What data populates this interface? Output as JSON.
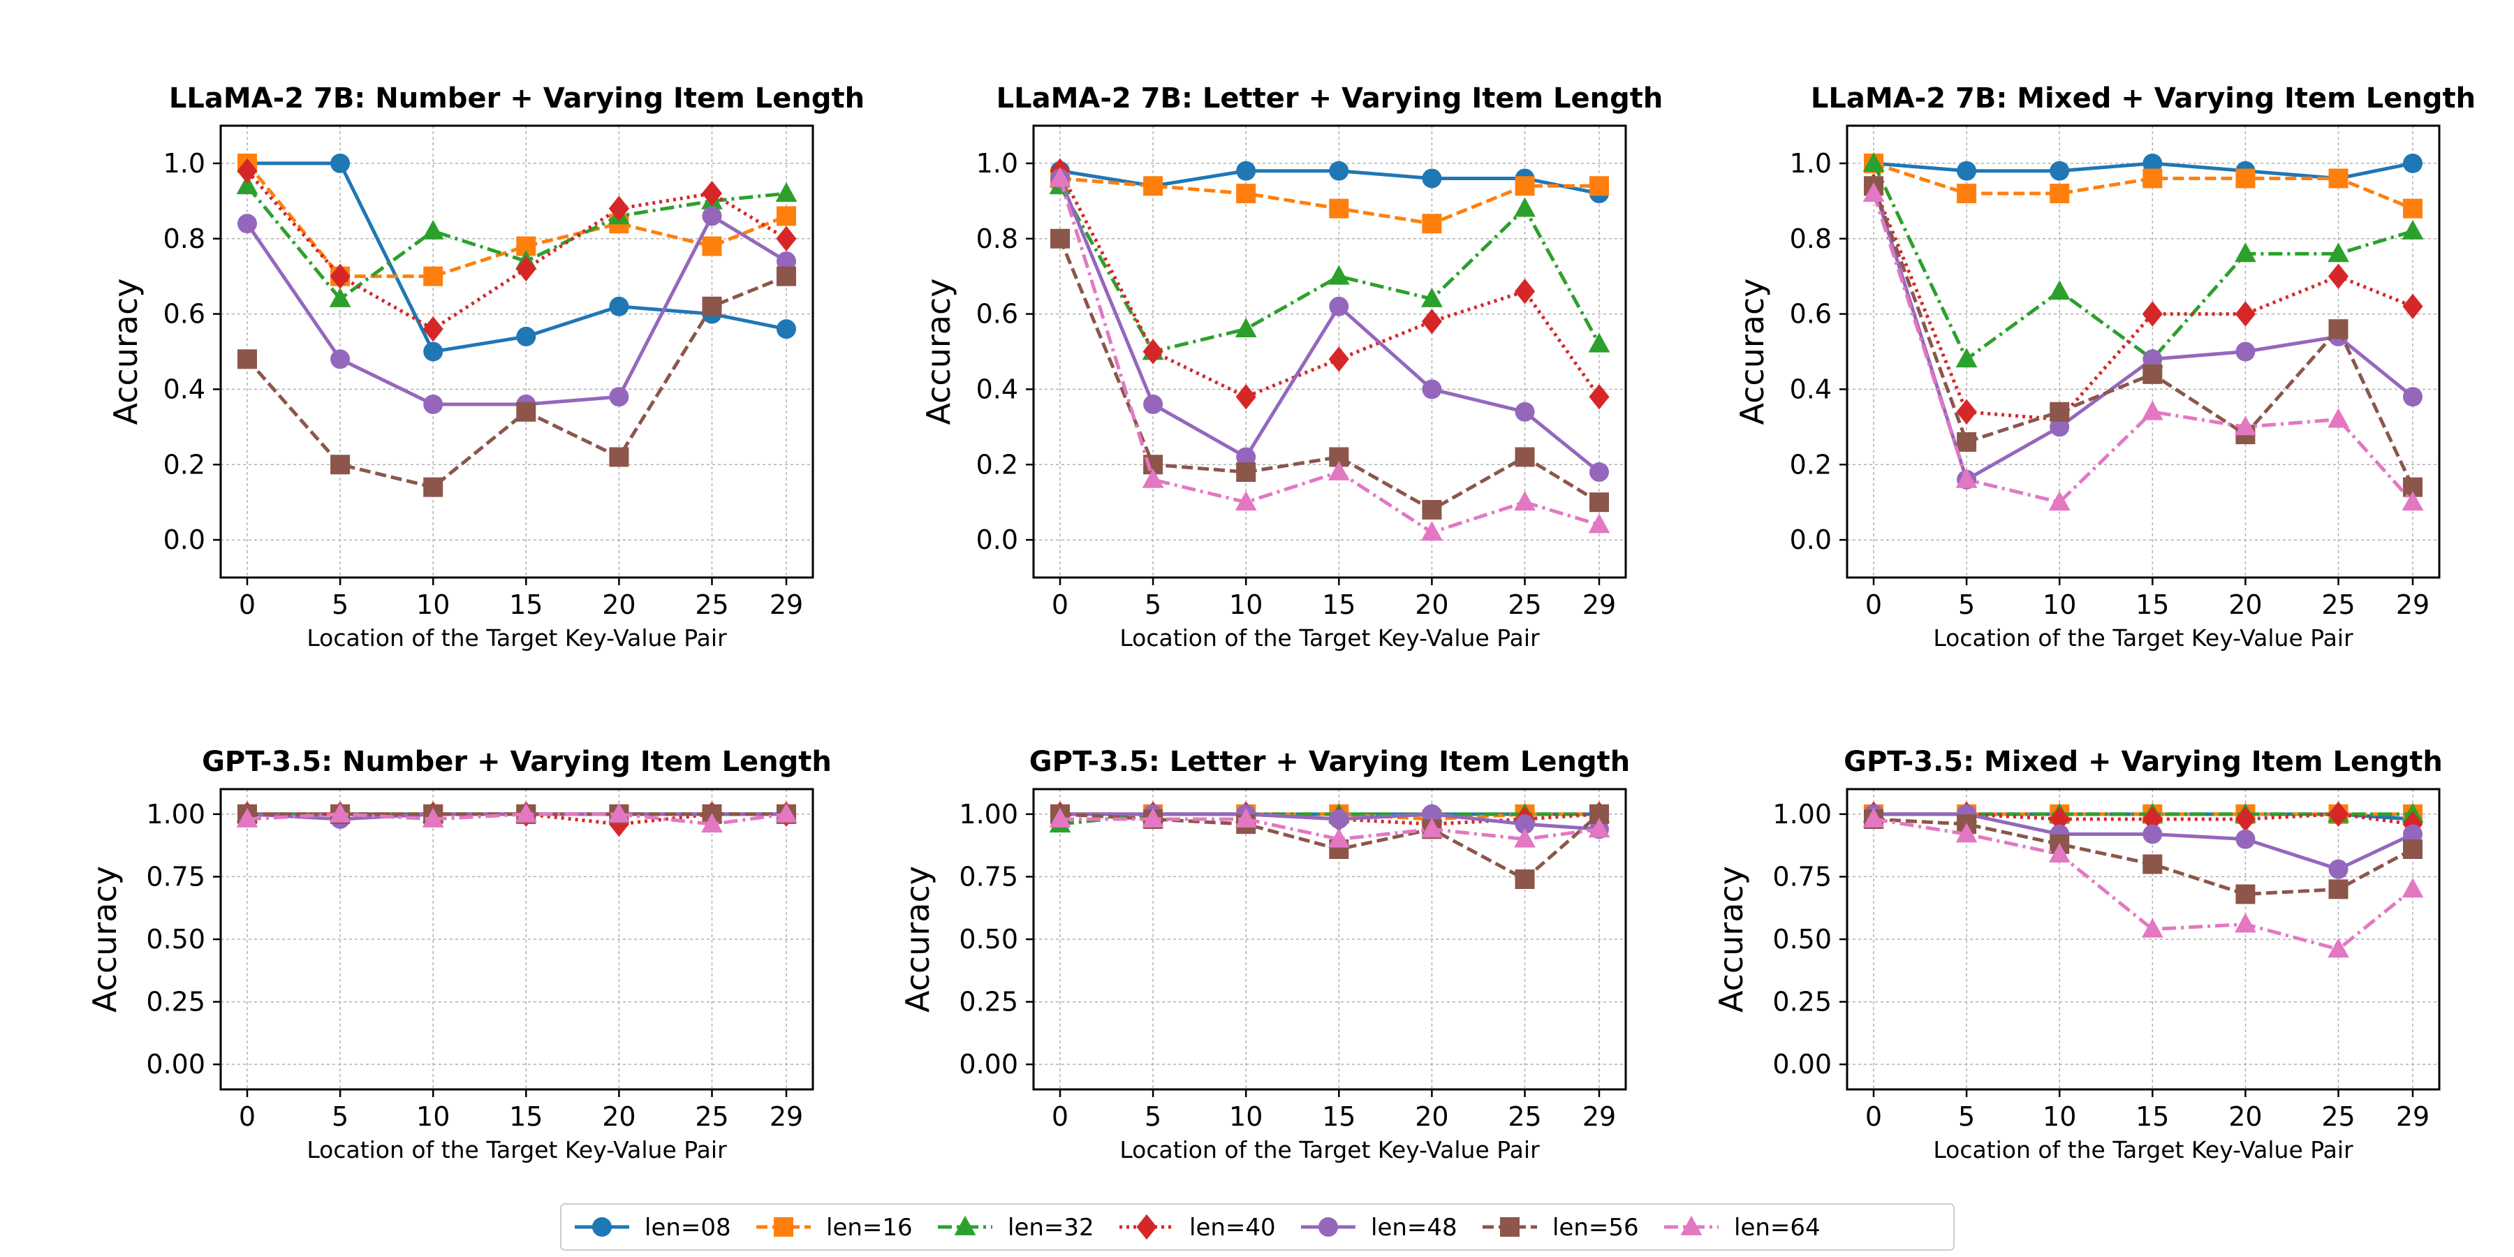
{
  "chart_data": {
    "type": "line",
    "x": [
      0,
      5,
      10,
      15,
      20,
      25,
      29
    ],
    "xlabel": "Location of the Target Key-Value Pair",
    "ylabel": "Accuracy",
    "grid": true,
    "legend_placement": "bottom-center",
    "series_styles": [
      {
        "name": "len=08",
        "color": "#1f77b4",
        "marker": "circle",
        "dash": "solid"
      },
      {
        "name": "len=16",
        "color": "#ff7f0e",
        "marker": "square",
        "dash": "dashed"
      },
      {
        "name": "len=32",
        "color": "#2ca02c",
        "marker": "triangle",
        "dash": "dashdot"
      },
      {
        "name": "len=40",
        "color": "#d62728",
        "marker": "diamond",
        "dash": "dotted"
      },
      {
        "name": "len=48",
        "color": "#9467bd",
        "marker": "circle",
        "dash": "solid"
      },
      {
        "name": "len=56",
        "color": "#8c564b",
        "marker": "square",
        "dash": "dashed"
      },
      {
        "name": "len=64",
        "color": "#e377c2",
        "marker": "triangle",
        "dash": "dashdot"
      }
    ],
    "panels": [
      {
        "title": "LLaMA-2 7B: Number + Varying Item Length",
        "ylim": [
          -0.1,
          1.1
        ],
        "yticks": [
          "0.0",
          "0.2",
          "0.4",
          "0.6",
          "0.8",
          "1.0"
        ],
        "ytick_values": [
          0,
          0.2,
          0.4,
          0.6,
          0.8,
          1.0
        ],
        "series": [
          {
            "name": "len=08",
            "values": [
              1.0,
              1.0,
              0.5,
              0.54,
              0.62,
              0.6,
              0.56
            ]
          },
          {
            "name": "len=16",
            "values": [
              1.0,
              0.7,
              0.7,
              0.78,
              0.84,
              0.78,
              0.86
            ]
          },
          {
            "name": "len=32",
            "values": [
              0.94,
              0.64,
              0.82,
              0.74,
              0.86,
              0.9,
              0.92
            ]
          },
          {
            "name": "len=40",
            "values": [
              0.98,
              0.7,
              0.56,
              0.72,
              0.88,
              0.92,
              0.8
            ]
          },
          {
            "name": "len=48",
            "values": [
              0.84,
              0.48,
              0.36,
              0.36,
              0.38,
              0.86,
              0.74
            ]
          },
          {
            "name": "len=56",
            "values": [
              0.48,
              0.2,
              0.14,
              0.34,
              0.22,
              0.62,
              0.7
            ]
          }
        ]
      },
      {
        "title": "LLaMA-2 7B: Letter + Varying Item Length",
        "ylim": [
          -0.1,
          1.1
        ],
        "yticks": [
          "0.0",
          "0.2",
          "0.4",
          "0.6",
          "0.8",
          "1.0"
        ],
        "ytick_values": [
          0,
          0.2,
          0.4,
          0.6,
          0.8,
          1.0
        ],
        "series": [
          {
            "name": "len=08",
            "values": [
              0.98,
              0.94,
              0.98,
              0.98,
              0.96,
              0.96,
              0.92
            ]
          },
          {
            "name": "len=16",
            "values": [
              0.96,
              0.94,
              0.92,
              0.88,
              0.84,
              0.94,
              0.94
            ]
          },
          {
            "name": "len=32",
            "values": [
              0.94,
              0.5,
              0.56,
              0.7,
              0.64,
              0.88,
              0.52
            ]
          },
          {
            "name": "len=40",
            "values": [
              0.98,
              0.5,
              0.38,
              0.48,
              0.58,
              0.66,
              0.38
            ]
          },
          {
            "name": "len=48",
            "values": [
              0.96,
              0.36,
              0.22,
              0.62,
              0.4,
              0.34,
              0.18
            ]
          },
          {
            "name": "len=56",
            "values": [
              0.8,
              0.2,
              0.18,
              0.22,
              0.08,
              0.22,
              0.1
            ]
          },
          {
            "name": "len=64",
            "values": [
              0.96,
              0.16,
              0.1,
              0.18,
              0.02,
              0.1,
              0.04
            ]
          }
        ]
      },
      {
        "title": "LLaMA-2 7B: Mixed + Varying Item Length",
        "ylim": [
          -0.1,
          1.1
        ],
        "yticks": [
          "0.0",
          "0.2",
          "0.4",
          "0.6",
          "0.8",
          "1.0"
        ],
        "ytick_values": [
          0,
          0.2,
          0.4,
          0.6,
          0.8,
          1.0
        ],
        "series": [
          {
            "name": "len=08",
            "values": [
              1.0,
              0.98,
              0.98,
              1.0,
              0.98,
              0.96,
              1.0
            ]
          },
          {
            "name": "len=16",
            "values": [
              1.0,
              0.92,
              0.92,
              0.96,
              0.96,
              0.96,
              0.88
            ]
          },
          {
            "name": "len=32",
            "values": [
              1.0,
              0.48,
              0.66,
              0.48,
              0.76,
              0.76,
              0.82
            ]
          },
          {
            "name": "len=40",
            "values": [
              0.94,
              0.34,
              0.32,
              0.6,
              0.6,
              0.7,
              0.62
            ]
          },
          {
            "name": "len=48",
            "values": [
              0.94,
              0.16,
              0.3,
              0.48,
              0.5,
              0.54,
              0.38
            ]
          },
          {
            "name": "len=56",
            "values": [
              0.94,
              0.26,
              0.34,
              0.44,
              0.28,
              0.56,
              0.14
            ]
          },
          {
            "name": "len=64",
            "values": [
              0.92,
              0.16,
              0.1,
              0.34,
              0.3,
              0.32,
              0.1
            ]
          }
        ]
      },
      {
        "title": "GPT-3.5: Number + Varying Item Length",
        "ylim": [
          -0.1,
          1.1
        ],
        "yticks": [
          "0.00",
          "0.25",
          "0.50",
          "0.75",
          "1.00"
        ],
        "ytick_values": [
          0,
          0.25,
          0.5,
          0.75,
          1.0
        ],
        "series": [
          {
            "name": "len=08",
            "values": [
              1.0,
              1.0,
              1.0,
              1.0,
              1.0,
              1.0,
              1.0
            ]
          },
          {
            "name": "len=16",
            "values": [
              1.0,
              1.0,
              1.0,
              1.0,
              1.0,
              1.0,
              1.0
            ]
          },
          {
            "name": "len=32",
            "values": [
              1.0,
              1.0,
              1.0,
              1.0,
              1.0,
              1.0,
              1.0
            ]
          },
          {
            "name": "len=40",
            "values": [
              1.0,
              1.0,
              1.0,
              1.0,
              0.96,
              1.0,
              1.0
            ]
          },
          {
            "name": "len=48",
            "values": [
              1.0,
              0.98,
              1.0,
              1.0,
              1.0,
              1.0,
              1.0
            ]
          },
          {
            "name": "len=56",
            "values": [
              1.0,
              1.0,
              1.0,
              1.0,
              1.0,
              1.0,
              1.0
            ]
          },
          {
            "name": "len=64",
            "values": [
              0.98,
              1.0,
              0.98,
              1.0,
              1.0,
              0.96,
              1.0
            ]
          }
        ]
      },
      {
        "title": "GPT-3.5: Letter + Varying Item Length",
        "ylim": [
          -0.1,
          1.1
        ],
        "yticks": [
          "0.00",
          "0.25",
          "0.50",
          "0.75",
          "1.00"
        ],
        "ytick_values": [
          0,
          0.25,
          0.5,
          0.75,
          1.0
        ],
        "series": [
          {
            "name": "len=08",
            "values": [
              1.0,
              1.0,
              1.0,
              1.0,
              1.0,
              1.0,
              1.0
            ]
          },
          {
            "name": "len=16",
            "values": [
              1.0,
              1.0,
              1.0,
              1.0,
              0.98,
              1.0,
              1.0
            ]
          },
          {
            "name": "len=32",
            "values": [
              0.96,
              1.0,
              1.0,
              1.0,
              1.0,
              1.0,
              1.0
            ]
          },
          {
            "name": "len=40",
            "values": [
              1.0,
              1.0,
              1.0,
              0.98,
              0.96,
              0.98,
              1.0
            ]
          },
          {
            "name": "len=48",
            "values": [
              1.0,
              1.0,
              1.0,
              0.98,
              1.0,
              0.96,
              0.94
            ]
          },
          {
            "name": "len=56",
            "values": [
              1.0,
              0.98,
              0.96,
              0.86,
              0.94,
              0.74,
              1.0
            ]
          },
          {
            "name": "len=64",
            "values": [
              0.98,
              0.98,
              0.98,
              0.9,
              0.94,
              0.9,
              0.94
            ]
          }
        ]
      },
      {
        "title": "GPT-3.5: Mixed + Varying Item Length",
        "ylim": [
          -0.1,
          1.1
        ],
        "yticks": [
          "0.00",
          "0.25",
          "0.50",
          "0.75",
          "1.00"
        ],
        "ytick_values": [
          0,
          0.25,
          0.5,
          0.75,
          1.0
        ],
        "series": [
          {
            "name": "len=08",
            "values": [
              1.0,
              1.0,
              1.0,
              1.0,
              1.0,
              1.0,
              0.98
            ]
          },
          {
            "name": "len=16",
            "values": [
              1.0,
              1.0,
              1.0,
              1.0,
              1.0,
              1.0,
              1.0
            ]
          },
          {
            "name": "len=32",
            "values": [
              1.0,
              1.0,
              1.0,
              1.0,
              1.0,
              1.0,
              1.0
            ]
          },
          {
            "name": "len=40",
            "values": [
              1.0,
              1.0,
              0.98,
              0.98,
              0.98,
              1.0,
              0.96
            ]
          },
          {
            "name": "len=48",
            "values": [
              1.0,
              1.0,
              0.92,
              0.92,
              0.9,
              0.78,
              0.92
            ]
          },
          {
            "name": "len=56",
            "values": [
              0.98,
              0.96,
              0.88,
              0.8,
              0.68,
              0.7,
              0.86
            ]
          },
          {
            "name": "len=64",
            "values": [
              0.98,
              0.92,
              0.84,
              0.54,
              0.56,
              0.46,
              0.7
            ]
          }
        ]
      }
    ]
  }
}
